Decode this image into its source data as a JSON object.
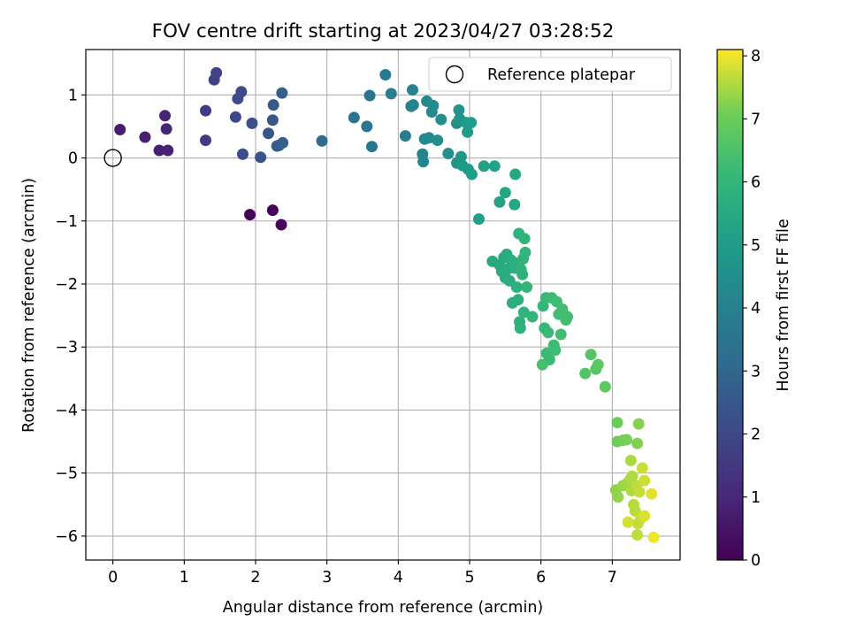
{
  "chart_data": {
    "type": "scatter",
    "title": "FOV centre drift starting at 2023/04/27 03:28:52",
    "xlabel": "Angular distance from reference (arcmin)",
    "ylabel": "Rotation from reference (arcmin)",
    "xlim": [
      -0.38,
      7.95
    ],
    "ylim": [
      -6.38,
      1.72
    ],
    "xticks": [
      0,
      1,
      2,
      3,
      4,
      5,
      6,
      7
    ],
    "yticks": [
      -6,
      -5,
      -4,
      -3,
      -2,
      -1,
      0,
      1
    ],
    "grid": true,
    "legend": {
      "position": "top-right",
      "entries": [
        "Reference platepar"
      ]
    },
    "reference_point": {
      "name": "Reference platepar",
      "x": 0,
      "y": 0
    },
    "colorbar": {
      "label": "Hours from first FF file",
      "min": 0,
      "max": 8.1,
      "ticks": [
        0,
        1,
        2,
        3,
        4,
        5,
        6,
        7,
        8
      ],
      "colormap": "viridis"
    },
    "points": [
      {
        "x": 1.92,
        "y": -0.9,
        "c": 0.05
      },
      {
        "x": 2.24,
        "y": -0.83,
        "c": 0.1
      },
      {
        "x": 2.36,
        "y": -1.06,
        "c": 0.15
      },
      {
        "x": 0.1,
        "y": 0.45,
        "c": 0.7
      },
      {
        "x": 0.45,
        "y": 0.33,
        "c": 0.75
      },
      {
        "x": 0.65,
        "y": 0.12,
        "c": 0.8
      },
      {
        "x": 0.77,
        "y": 0.12,
        "c": 0.85
      },
      {
        "x": 0.73,
        "y": 0.67,
        "c": 0.9
      },
      {
        "x": 0.75,
        "y": 0.46,
        "c": 0.95
      },
      {
        "x": 1.3,
        "y": 0.28,
        "c": 1.6
      },
      {
        "x": 1.3,
        "y": 0.75,
        "c": 1.65
      },
      {
        "x": 1.42,
        "y": 1.24,
        "c": 1.8
      },
      {
        "x": 1.45,
        "y": 1.35,
        "c": 1.85
      },
      {
        "x": 1.72,
        "y": 0.65,
        "c": 2.0
      },
      {
        "x": 1.75,
        "y": 0.94,
        "c": 2.05
      },
      {
        "x": 1.8,
        "y": 1.05,
        "c": 2.1
      },
      {
        "x": 1.82,
        "y": 0.06,
        "c": 2.2
      },
      {
        "x": 1.95,
        "y": 0.55,
        "c": 2.25
      },
      {
        "x": 2.07,
        "y": 0.01,
        "c": 2.4
      },
      {
        "x": 2.18,
        "y": 0.39,
        "c": 2.45
      },
      {
        "x": 2.24,
        "y": 0.6,
        "c": 2.5
      },
      {
        "x": 2.25,
        "y": 0.84,
        "c": 2.55
      },
      {
        "x": 2.3,
        "y": 0.19,
        "c": 2.6
      },
      {
        "x": 2.33,
        "y": 0.2,
        "c": 2.65
      },
      {
        "x": 2.37,
        "y": 1.03,
        "c": 2.7
      },
      {
        "x": 2.38,
        "y": 0.24,
        "c": 2.75
      },
      {
        "x": 2.93,
        "y": 0.27,
        "c": 3.2
      },
      {
        "x": 3.38,
        "y": 0.64,
        "c": 3.5
      },
      {
        "x": 3.56,
        "y": 0.5,
        "c": 3.55
      },
      {
        "x": 3.6,
        "y": 0.99,
        "c": 3.6
      },
      {
        "x": 3.63,
        "y": 0.18,
        "c": 3.65
      },
      {
        "x": 3.82,
        "y": 1.32,
        "c": 3.8
      },
      {
        "x": 3.9,
        "y": 1.02,
        "c": 3.85
      },
      {
        "x": 4.1,
        "y": 0.35,
        "c": 3.9
      },
      {
        "x": 4.18,
        "y": 0.82,
        "c": 3.95
      },
      {
        "x": 4.2,
        "y": 1.08,
        "c": 4.0
      },
      {
        "x": 4.21,
        "y": 0.84,
        "c": 4.05
      },
      {
        "x": 4.34,
        "y": 0.06,
        "c": 4.1
      },
      {
        "x": 4.35,
        "y": -0.06,
        "c": 4.15
      },
      {
        "x": 4.37,
        "y": 0.3,
        "c": 4.2
      },
      {
        "x": 4.4,
        "y": 0.9,
        "c": 4.25
      },
      {
        "x": 4.43,
        "y": 0.32,
        "c": 4.3
      },
      {
        "x": 4.47,
        "y": 0.73,
        "c": 4.35
      },
      {
        "x": 4.49,
        "y": 0.83,
        "c": 4.4
      },
      {
        "x": 4.55,
        "y": 0.28,
        "c": 4.45
      },
      {
        "x": 4.6,
        "y": 0.61,
        "c": 4.5
      },
      {
        "x": 4.7,
        "y": 0.07,
        "c": 4.55
      },
      {
        "x": 4.82,
        "y": 0.55,
        "c": 4.6
      },
      {
        "x": 4.82,
        "y": -0.08,
        "c": 4.65
      },
      {
        "x": 4.85,
        "y": 0.76,
        "c": 4.7
      },
      {
        "x": 4.86,
        "y": 0.62,
        "c": 4.75
      },
      {
        "x": 4.88,
        "y": 0.02,
        "c": 4.8
      },
      {
        "x": 4.9,
        "y": -0.12,
        "c": 4.85
      },
      {
        "x": 4.95,
        "y": 0.56,
        "c": 4.9
      },
      {
        "x": 4.97,
        "y": 0.41,
        "c": 4.95
      },
      {
        "x": 4.98,
        "y": -0.18,
        "c": 5.0
      },
      {
        "x": 5.02,
        "y": 0.56,
        "c": 5.05
      },
      {
        "x": 5.03,
        "y": -0.26,
        "c": 5.1
      },
      {
        "x": 5.13,
        "y": -0.97,
        "c": 5.15
      },
      {
        "x": 5.2,
        "y": -0.13,
        "c": 5.2
      },
      {
        "x": 5.35,
        "y": -0.13,
        "c": 5.25
      },
      {
        "x": 5.42,
        "y": -0.7,
        "c": 5.3
      },
      {
        "x": 5.5,
        "y": -0.55,
        "c": 5.35
      },
      {
        "x": 5.63,
        "y": -0.74,
        "c": 5.4
      },
      {
        "x": 5.64,
        "y": -0.26,
        "c": 5.45
      },
      {
        "x": 5.32,
        "y": -1.64,
        "c": 5.5
      },
      {
        "x": 5.42,
        "y": -1.7,
        "c": 5.52
      },
      {
        "x": 5.45,
        "y": -1.8,
        "c": 5.54
      },
      {
        "x": 5.48,
        "y": -1.58,
        "c": 5.56
      },
      {
        "x": 5.5,
        "y": -1.9,
        "c": 5.58
      },
      {
        "x": 5.52,
        "y": -1.53,
        "c": 5.6
      },
      {
        "x": 5.54,
        "y": -1.76,
        "c": 5.62
      },
      {
        "x": 5.56,
        "y": -1.95,
        "c": 5.64
      },
      {
        "x": 5.58,
        "y": -1.62,
        "c": 5.66
      },
      {
        "x": 5.6,
        "y": -2.3,
        "c": 5.68
      },
      {
        "x": 5.62,
        "y": -1.66,
        "c": 5.7
      },
      {
        "x": 5.64,
        "y": -1.75,
        "c": 5.72
      },
      {
        "x": 5.66,
        "y": -2.05,
        "c": 5.74
      },
      {
        "x": 5.68,
        "y": -2.25,
        "c": 5.76
      },
      {
        "x": 5.69,
        "y": -1.2,
        "c": 5.78
      },
      {
        "x": 5.7,
        "y": -2.6,
        "c": 5.8
      },
      {
        "x": 5.71,
        "y": -2.7,
        "c": 5.82
      },
      {
        "x": 5.72,
        "y": -1.77,
        "c": 5.84
      },
      {
        "x": 5.74,
        "y": -1.85,
        "c": 5.86
      },
      {
        "x": 5.75,
        "y": -1.6,
        "c": 5.88
      },
      {
        "x": 5.76,
        "y": -2.45,
        "c": 5.9
      },
      {
        "x": 5.77,
        "y": -1.28,
        "c": 5.92
      },
      {
        "x": 5.78,
        "y": -1.5,
        "c": 5.94
      },
      {
        "x": 5.8,
        "y": -2.05,
        "c": 5.96
      },
      {
        "x": 5.88,
        "y": -2.52,
        "c": 6.0
      },
      {
        "x": 6.03,
        "y": -2.35,
        "c": 6.05
      },
      {
        "x": 6.05,
        "y": -2.7,
        "c": 6.1
      },
      {
        "x": 6.07,
        "y": -2.22,
        "c": 6.12
      },
      {
        "x": 6.08,
        "y": -3.1,
        "c": 6.14
      },
      {
        "x": 6.1,
        "y": -2.77,
        "c": 6.16
      },
      {
        "x": 6.12,
        "y": -3.2,
        "c": 6.18
      },
      {
        "x": 6.15,
        "y": -2.22,
        "c": 6.2
      },
      {
        "x": 6.18,
        "y": -2.97,
        "c": 6.22
      },
      {
        "x": 6.2,
        "y": -3.05,
        "c": 6.24
      },
      {
        "x": 6.22,
        "y": -2.28,
        "c": 6.26
      },
      {
        "x": 6.25,
        "y": -2.48,
        "c": 6.28
      },
      {
        "x": 6.28,
        "y": -2.8,
        "c": 6.3
      },
      {
        "x": 6.3,
        "y": -2.4,
        "c": 6.32
      },
      {
        "x": 6.35,
        "y": -2.57,
        "c": 6.34
      },
      {
        "x": 6.37,
        "y": -2.52,
        "c": 6.36
      },
      {
        "x": 6.02,
        "y": -3.28,
        "c": 6.4
      },
      {
        "x": 6.62,
        "y": -3.42,
        "c": 6.6
      },
      {
        "x": 6.7,
        "y": -3.12,
        "c": 6.65
      },
      {
        "x": 6.77,
        "y": -3.35,
        "c": 6.7
      },
      {
        "x": 6.8,
        "y": -3.28,
        "c": 6.75
      },
      {
        "x": 6.9,
        "y": -3.63,
        "c": 6.8
      },
      {
        "x": 7.07,
        "y": -4.2,
        "c": 7.0
      },
      {
        "x": 7.07,
        "y": -4.5,
        "c": 7.05
      },
      {
        "x": 7.15,
        "y": -4.48,
        "c": 7.1
      },
      {
        "x": 7.2,
        "y": -4.47,
        "c": 7.15
      },
      {
        "x": 7.35,
        "y": -4.53,
        "c": 7.2
      },
      {
        "x": 7.37,
        "y": -4.22,
        "c": 7.25
      },
      {
        "x": 7.05,
        "y": -5.27,
        "c": 7.3
      },
      {
        "x": 7.08,
        "y": -5.38,
        "c": 7.35
      },
      {
        "x": 7.15,
        "y": -5.2,
        "c": 7.4
      },
      {
        "x": 7.2,
        "y": -5.17,
        "c": 7.45
      },
      {
        "x": 7.25,
        "y": -5.1,
        "c": 7.5
      },
      {
        "x": 7.26,
        "y": -4.8,
        "c": 7.52
      },
      {
        "x": 7.27,
        "y": -5.28,
        "c": 7.54
      },
      {
        "x": 7.28,
        "y": -5.05,
        "c": 7.56
      },
      {
        "x": 7.3,
        "y": -5.5,
        "c": 7.6
      },
      {
        "x": 7.32,
        "y": -5.6,
        "c": 7.62
      },
      {
        "x": 7.34,
        "y": -5.2,
        "c": 7.64
      },
      {
        "x": 7.35,
        "y": -5.98,
        "c": 7.66
      },
      {
        "x": 7.36,
        "y": -5.8,
        "c": 7.68
      },
      {
        "x": 7.38,
        "y": -5.3,
        "c": 7.7
      },
      {
        "x": 7.4,
        "y": -5.72,
        "c": 7.72
      },
      {
        "x": 7.42,
        "y": -4.92,
        "c": 7.74
      },
      {
        "x": 7.45,
        "y": -5.12,
        "c": 7.76
      },
      {
        "x": 7.22,
        "y": -5.78,
        "c": 7.8
      },
      {
        "x": 7.45,
        "y": -5.68,
        "c": 7.85
      },
      {
        "x": 7.55,
        "y": -5.33,
        "c": 7.9
      },
      {
        "x": 7.58,
        "y": -6.02,
        "c": 8.0
      }
    ]
  }
}
